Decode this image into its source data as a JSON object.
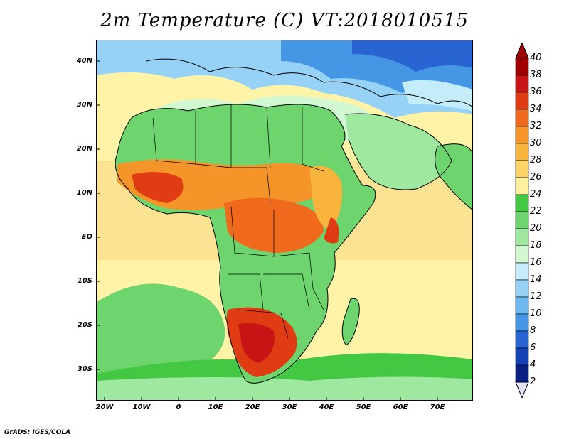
{
  "title": "2m Temperature (C) VT:2018010515",
  "credit": "GrADS: IGES/COLA",
  "map": {
    "lat_ticks": [
      "40N",
      "30N",
      "20N",
      "10N",
      "EQ",
      "10S",
      "20S",
      "30S"
    ],
    "lon_ticks": [
      "20W",
      "10W",
      "0",
      "10E",
      "20E",
      "30E",
      "40E",
      "50E",
      "60E",
      "70E"
    ],
    "region": "Africa and Middle East",
    "ocean_color": "#fff3a8",
    "land_color": "#33cc44"
  },
  "colorbar": {
    "levels": [
      "40",
      "38",
      "36",
      "34",
      "32",
      "30",
      "28",
      "26",
      "24",
      "22",
      "20",
      "18",
      "16",
      "14",
      "12",
      "10",
      "8",
      "6",
      "4",
      "2"
    ],
    "colors": [
      "#a00000",
      "#c81414",
      "#e03c14",
      "#f06a1e",
      "#f59428",
      "#f8b43c",
      "#fcd468",
      "#fff0a0",
      "#44c844",
      "#6ed46e",
      "#9fe89f",
      "#d2f8d2",
      "#c4ecfa",
      "#96d2f5",
      "#6eb9f0",
      "#4696e6",
      "#2864d2",
      "#1441b4",
      "#0a2082"
    ],
    "top_arrow_color": "#a00000",
    "bottom_arrow_color": "#e6e0f8"
  }
}
